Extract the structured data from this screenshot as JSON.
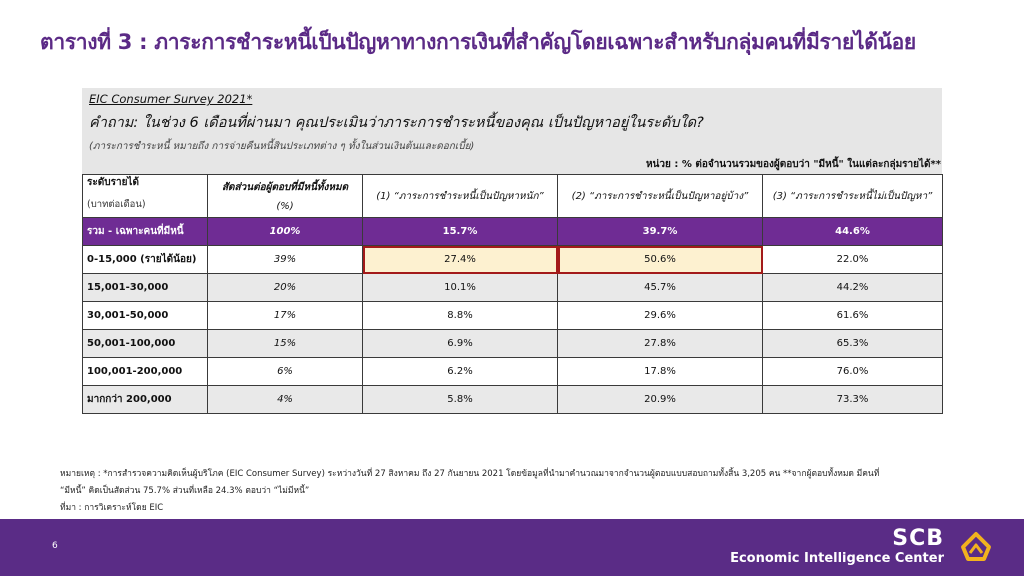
{
  "title": "ตารางที่ 3 : ภาระการชำระหนี้เป็นปัญหาทางการเงินที่สำคัญโดยเฉพาะสำหรับกลุ่มคนที่มีรายได้น้อย",
  "survey_label": "EIC Consumer Survey 2021*",
  "question": "คำถาม: ในช่วง 6 เดือนที่ผ่านมา คุณประเมินว่าภาระการชำระหนี้ของคุณ เป็นปัญหาอยู่ในระดับใด?",
  "definition": "(ภาระการชำระหนี้ หมายถึง การจ่ายคืนหนี้สินประเภทต่าง ๆ ทั้งในส่วนเงินต้นและดอกเบี้ย)",
  "unit_note": "หน่วย : % ต่อจำนวนรวมของผู้ตอบว่า \"มีหนี้\" ในแต่ละกลุ่มรายได้**",
  "table": {
    "headers": {
      "income_level": "ระดับรายได้",
      "income_unit": "(บาทต่อเดือน)",
      "share": "สัดส่วนต่อผู้ตอบที่มีหนี้ทั้งหมด",
      "share_unit": "(%)",
      "col1": "(1) “ภาระการชำระหนี้เป็นปัญหาหนัก”",
      "col2": "(2) “ภาระการชำระหนี้เป็นปัญหาอยู่บ้าง”",
      "col3": "(3) “ภาระการชำระหนี้ไม่เป็นปัญหา”"
    },
    "total": {
      "label": "รวม - เฉพาะคนที่มีหนี้",
      "share": "100%",
      "v1": "15.7%",
      "v2": "39.7%",
      "v3": "44.6%"
    },
    "rows": [
      {
        "label": "0-15,000 (รายได้น้อย)",
        "share": "39%",
        "v1": "27.4%",
        "v2": "50.6%",
        "v3": "22.0%"
      },
      {
        "label": "15,001-30,000",
        "share": "20%",
        "v1": "10.1%",
        "v2": "45.7%",
        "v3": "44.2%"
      },
      {
        "label": "30,001-50,000",
        "share": "17%",
        "v1": "8.8%",
        "v2": "29.6%",
        "v3": "61.6%"
      },
      {
        "label": "50,001-100,000",
        "share": "15%",
        "v1": "6.9%",
        "v2": "27.8%",
        "v3": "65.3%"
      },
      {
        "label": "100,001-200,000",
        "share": "6%",
        "v1": "6.2%",
        "v2": "17.8%",
        "v3": "76.0%"
      },
      {
        "label": "มากกว่า 200,000",
        "share": "4%",
        "v1": "5.8%",
        "v2": "20.9%",
        "v3": "73.3%"
      }
    ]
  },
  "notes": {
    "line1": "หมายเหตุ : *การสำรวจความคิดเห็นผู้บริโภค (EIC Consumer Survey) ระหว่างวันที่ 27 สิงหาคม ถึง 27 กันยายน 2021 โดยข้อมูลที่นำมาคำนวณมาจากจำนวนผู้ตอบแบบสอบถามทั้งสิ้น 3,205 คน **จากผู้ตอบทั้งหมด มีคนที่",
    "line2": "“มีหนี้” คิดเป็นสัดส่วน 75.7% ส่วนที่เหลือ 24.3% ตอบว่า “ไม่มีหนี้”",
    "source": "ที่มา : การวิเคราะห์โดย EIC"
  },
  "footer": {
    "page_number": "6",
    "brand_name": "SCB",
    "brand_sub": "Economic Intelligence Center",
    "logo_icon": "scb-lotus-logo-icon"
  },
  "colors": {
    "brand_purple": "#5a2c86",
    "total_row": "#6f2c94",
    "highlight_fill": "#fdf1d0",
    "highlight_border": "#a31a1a"
  }
}
